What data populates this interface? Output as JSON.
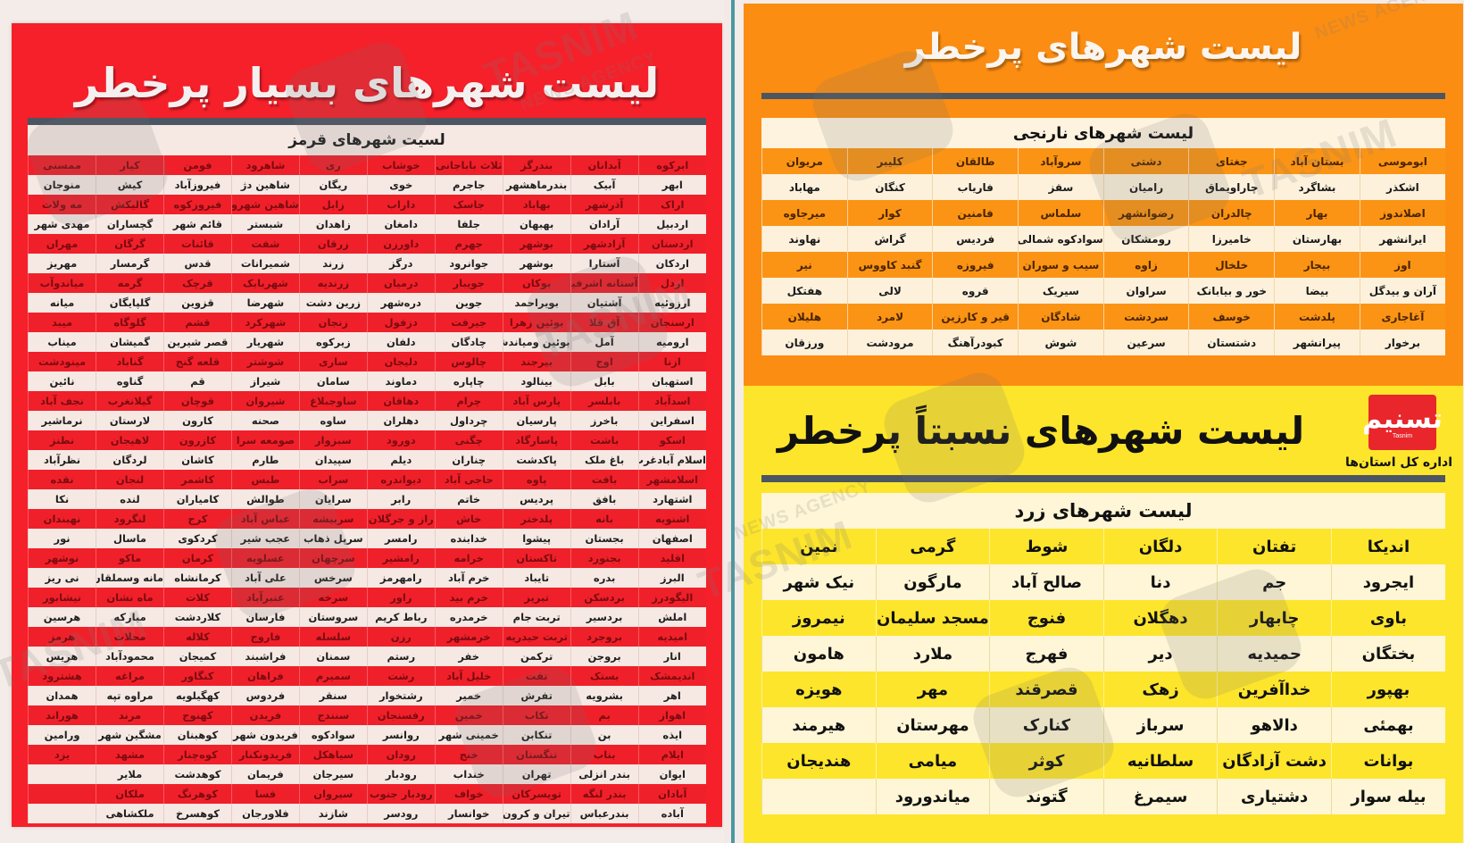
{
  "red": {
    "title": "لیست شهرهای بسیار پرخطر",
    "subtitle": "لسیت شهرهای قرمز",
    "color": "#f5202a",
    "rows": [
      [
        "ابرکوه",
        "آبدانان",
        "بندرگز",
        "ثلاث باباجانی",
        "خوشاب",
        "ری",
        "شاهرود",
        "فومن",
        "کیار",
        "ممسنی"
      ],
      [
        "ابهر",
        "آبیک",
        "بندرماهشهر",
        "جاجرم",
        "خوی",
        "ریگان",
        "شاهین دژ",
        "فیروزآباد",
        "کیش",
        "منوجان"
      ],
      [
        "اراک",
        "آذرشهر",
        "بهاباد",
        "جاسک",
        "داراب",
        "زابل",
        "شاهین شهرومیمه",
        "فیروزکوه",
        "گالیکش",
        "مه ولات"
      ],
      [
        "اردبیل",
        "آرادان",
        "بهبهان",
        "جلفا",
        "دامغان",
        "زاهدان",
        "شبستر",
        "قائم شهر",
        "گچساران",
        "مهدی شهر"
      ],
      [
        "اردستان",
        "آزادشهر",
        "بوشهر",
        "جهرم",
        "داورزن",
        "زرقان",
        "شفت",
        "قائنات",
        "گرگان",
        "مهران"
      ],
      [
        "اردکان",
        "آستارا",
        "بوشهر",
        "جوانرود",
        "درگز",
        "زرند",
        "شمیرانات",
        "قدس",
        "گرمسار",
        "مهریز"
      ],
      [
        "اردل",
        "آستانه اشرفیه",
        "بوکان",
        "جویبار",
        "درمیان",
        "زرندیه",
        "شهربابک",
        "قرچک",
        "گرمه",
        "میاندوآب"
      ],
      [
        "ارزوئیه",
        "آشتیان",
        "بویراحمد",
        "جوین",
        "دره‌شهر",
        "زرین دشت",
        "شهرضا",
        "قزوین",
        "گلپایگان",
        "میانه"
      ],
      [
        "ارسنجان",
        "آق قلا",
        "بوئین زهرا",
        "جیرفت",
        "دزفول",
        "زنجان",
        "شهرکرد",
        "قشم",
        "گلوگاه",
        "میبد"
      ],
      [
        "ارومیه",
        "آمل",
        "بوئین ومیاندشت",
        "چادگان",
        "دلفان",
        "زیرکوه",
        "شهریار",
        "قصر شیرین",
        "گمیشان",
        "میناب"
      ],
      [
        "ازنا",
        "اوج",
        "بیرجند",
        "چالوس",
        "دلیجان",
        "ساری",
        "شوشتر",
        "قلعه گنج",
        "گناباد",
        "مینودشت"
      ],
      [
        "استهبان",
        "بابل",
        "بینالود",
        "چاپاره",
        "دماوند",
        "سامان",
        "شیراز",
        "قم",
        "گناوه",
        "نائین"
      ],
      [
        "اسدآباد",
        "بابلسر",
        "پارس آباد",
        "چرام",
        "دهاقان",
        "ساوجبلاغ",
        "شیروان",
        "قوچان",
        "گیلانغرب",
        "نجف آباد"
      ],
      [
        "اسفراین",
        "باخرز",
        "پارسیان",
        "چرداول",
        "دهلران",
        "ساوه",
        "صحنه",
        "کارون",
        "لارستان",
        "نرماشیر"
      ],
      [
        "اسکو",
        "باشت",
        "پاسارگاد",
        "چگنی",
        "دورود",
        "سبزوار",
        "صومعه سرا",
        "کازرون",
        "لاهیجان",
        "نطنز"
      ],
      [
        "اسلام آبادغرب",
        "باغ ملک",
        "پاکدشت",
        "چناران",
        "دیلم",
        "سپیدان",
        "طارم",
        "کاشان",
        "لردگان",
        "نظرآباد"
      ],
      [
        "اسلامشهر",
        "بافت",
        "پاوه",
        "حاجی آباد",
        "دیواندره",
        "سراب",
        "طبس",
        "کاشمر",
        "لنجان",
        "نقده"
      ],
      [
        "اشتهارد",
        "بافق",
        "پردیس",
        "خاتم",
        "رابر",
        "سرایان",
        "طوالش",
        "کامیاران",
        "لنده",
        "نکا"
      ],
      [
        "اشنویه",
        "بانه",
        "پلدختر",
        "خاش",
        "راز و جرگلان",
        "سربیشه",
        "عباس آباد",
        "کرج",
        "لنگرود",
        "نهبندان"
      ],
      [
        "اصفهان",
        "بجستان",
        "پیشوا",
        "خدابنده",
        "رامسر",
        "سرپل ذهاب",
        "عجب شیر",
        "کردکوی",
        "ماسال",
        "نور"
      ],
      [
        "اقلید",
        "بجنورد",
        "تاکستان",
        "خرامه",
        "رامشیر",
        "سرچهان",
        "عسلویه",
        "کرمان",
        "ماکو",
        "نوشهر"
      ],
      [
        "البرز",
        "بدره",
        "تایباد",
        "خرم آباد",
        "رامهرمز",
        "سرخس",
        "علی آباد",
        "کرمانشاه",
        "مانه وسملقان",
        "نی ریز"
      ],
      [
        "الیگودرز",
        "بردسکن",
        "تبریز",
        "خرم بید",
        "راور",
        "سرخه",
        "عنبرآباد",
        "کلات",
        "ماه نشان",
        "نیشابور"
      ],
      [
        "املش",
        "بردسیر",
        "تربت جام",
        "خرمدره",
        "رباط کریم",
        "سروستان",
        "فارسان",
        "کلاردشت",
        "مبارکه",
        "هرسین"
      ],
      [
        "امیدیه",
        "بروجرد",
        "تربت حیدریه",
        "خرمشهر",
        "رزن",
        "سلسله",
        "فاروج",
        "کلاله",
        "محلات",
        "هرمز"
      ],
      [
        "انار",
        "بروجن",
        "ترکمن",
        "خفر",
        "رستم",
        "سمنان",
        "فراشبند",
        "کمیجان",
        "محمودآباد",
        "هریس"
      ],
      [
        "اندیمشک",
        "بستک",
        "تفت",
        "خلیل آباد",
        "رشت",
        "سمیرم",
        "فراهان",
        "کنگاور",
        "مراغه",
        "هشترود"
      ],
      [
        "اهر",
        "بشرویه",
        "تفرش",
        "خمیر",
        "رشتخوار",
        "سنقر",
        "فردوس",
        "کهگیلویه",
        "مراوه تپه",
        "همدان"
      ],
      [
        "اهواز",
        "بم",
        "تکاب",
        "خمین",
        "رفسنجان",
        "سنندج",
        "فریدن",
        "کهنوج",
        "مرند",
        "هوراند"
      ],
      [
        "ایذه",
        "بن",
        "تنکابن",
        "خمینی شهر",
        "روانسر",
        "سوادکوه",
        "فریدون شهر",
        "کوهبنان",
        "مشگین شهر",
        "ورامین"
      ],
      [
        "ایلام",
        "بناب",
        "تنگستان",
        "خنج",
        "رودان",
        "سیاهکل",
        "فریدونکنار",
        "کوه‌چنار",
        "مشهد",
        "یزد"
      ],
      [
        "ایوان",
        "بندر انزلی",
        "تهران",
        "خنداب",
        "رودبار",
        "سیرجان",
        "فریمان",
        "کوهدشت",
        "ملایر",
        ""
      ],
      [
        "آبادان",
        "بندر لنگه",
        "تویسرکان",
        "خواف",
        "رودبار جنوب",
        "سیروان",
        "فسا",
        "کوهرنگ",
        "ملکان",
        ""
      ],
      [
        "آباده",
        "بندرعباس",
        "تیران و کرون",
        "خوانسار",
        "رودسر",
        "شازند",
        "فلاورجان",
        "کوهسرخ",
        "ملکشاهی",
        ""
      ]
    ]
  },
  "orange": {
    "title": "لیست شهرهای پرخطر",
    "subtitle": "لیست شهرهای نارنجی",
    "color": "#fb8d12",
    "rows": [
      [
        "ابوموسی",
        "بستان آباد",
        "جغتای",
        "دشتی",
        "سروآباد",
        "طالقان",
        "کلیبر",
        "مریوان"
      ],
      [
        "اشکذر",
        "بشاگرد",
        "چاراویماق",
        "رامیان",
        "سقز",
        "فاریاب",
        "کنگان",
        "مهاباد"
      ],
      [
        "اصلاندوز",
        "بهار",
        "چالدران",
        "رضوانشهر",
        "سلماس",
        "فامنین",
        "کوار",
        "میرجاوه"
      ],
      [
        "ایرانشهر",
        "بهارستان",
        "خامیرزا",
        "رومشکان",
        "سوادکوه شمالی",
        "فردیس",
        "گراش",
        "نهاوند"
      ],
      [
        "اوز",
        "بیجار",
        "خلخال",
        "زاوه",
        "سیب و سوران",
        "فیروزه",
        "گنبد کاووس",
        "نیر"
      ],
      [
        "آران و بیدگل",
        "بیضا",
        "خور و بیابانک",
        "سراوان",
        "سیریک",
        "قروه",
        "لالی",
        "هفتکل"
      ],
      [
        "آغاجاری",
        "پلدشت",
        "خوسف",
        "سردشت",
        "شادگان",
        "قیر و کارزین",
        "لامرد",
        "هلیلان"
      ],
      [
        "برخوار",
        "پیرانشهر",
        "دشتستان",
        "سرعین",
        "شوش",
        "کبودرآهنگ",
        "مرودشت",
        "ورزقان"
      ]
    ]
  },
  "yellow": {
    "title": "لیست شهرهای نسبتاً پرخطر",
    "subtitle": "لیست شهرهای زرد",
    "color": "#fde52c",
    "logo": {
      "glyph": "تسنیم",
      "latin": "Tasnim",
      "caption": "اداره کل استان‌ها"
    },
    "rows": [
      [
        "اندیکا",
        "تفتان",
        "دلگان",
        "شوط",
        "گرمی",
        "نمین"
      ],
      [
        "ایجرود",
        "جم",
        "دنا",
        "صالح آباد",
        "مارگون",
        "نیک شهر"
      ],
      [
        "باوی",
        "چابهار",
        "دهگلان",
        "فنوج",
        "مسجد سلیمان",
        "نیمروز"
      ],
      [
        "بختگان",
        "حمیدیه",
        "دیر",
        "فهرج",
        "ملارد",
        "هامون"
      ],
      [
        "بهپور",
        "خداآفرین",
        "زهک",
        "قصرقند",
        "مهر",
        "هویزه"
      ],
      [
        "بهمئی",
        "دالاهو",
        "سرباز",
        "کنارک",
        "مهرستان",
        "هیرمند"
      ],
      [
        "بوانات",
        "دشت آزادگان",
        "سلطانیه",
        "کوثر",
        "میامی",
        "هندیجان"
      ],
      [
        "بیله سوار",
        "دشتیاری",
        "سیمرغ",
        "گتوند",
        "میاندورود",
        ""
      ]
    ]
  },
  "watermark": {
    "text": "TASNIM",
    "sub": "NEWS AGENCY"
  }
}
